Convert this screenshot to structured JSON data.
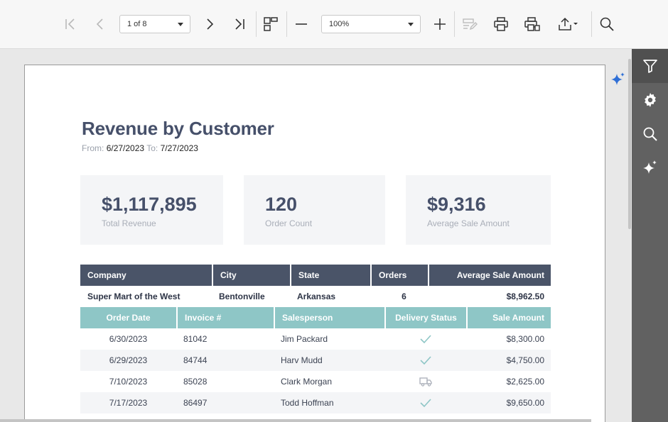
{
  "toolbar": {
    "page_select": "1 of 8",
    "zoom_select": "100%"
  },
  "report": {
    "title": "Revenue by Customer",
    "from_label": "From:",
    "from_date": "6/27/2023",
    "to_label": "To:",
    "to_date": "7/27/2023",
    "kpis": [
      {
        "value": "$1,117,895",
        "caption": "Total Revenue"
      },
      {
        "value": "120",
        "caption": "Order Count"
      },
      {
        "value": "$9,316",
        "caption": "Average Sale Amount"
      }
    ],
    "header": [
      "Company",
      "City",
      "State",
      "Orders",
      "Average Sale Amount"
    ],
    "group": {
      "company": "Super Mart of the West",
      "city": "Bentonville",
      "state": "Arkansas",
      "orders": "6",
      "avg": "$8,962.50"
    },
    "sub_header": [
      "Order Date",
      "Invoice #",
      "Salesperson",
      "Delivery Status",
      "Sale Amount"
    ],
    "rows": [
      {
        "date": "6/30/2023",
        "invoice": "81042",
        "salesperson": "Jim Packard",
        "status": "check-icon",
        "amount": "$8,300.00"
      },
      {
        "date": "6/29/2023",
        "invoice": "84744",
        "salesperson": "Harv Mudd",
        "status": "check-icon",
        "amount": "$4,750.00"
      },
      {
        "date": "7/10/2023",
        "invoice": "85028",
        "salesperson": "Clark Morgan",
        "status": "truck-icon",
        "amount": "$2,625.00"
      },
      {
        "date": "7/17/2023",
        "invoice": "86497",
        "salesperson": "Todd Hoffman",
        "status": "check-icon",
        "amount": "$9,650.00"
      }
    ]
  },
  "colors": {
    "header_dark": "#4a5468",
    "header_teal": "#8ec6c6",
    "accent_blue": "#2f6fd6",
    "panel_gray": "#616161"
  }
}
